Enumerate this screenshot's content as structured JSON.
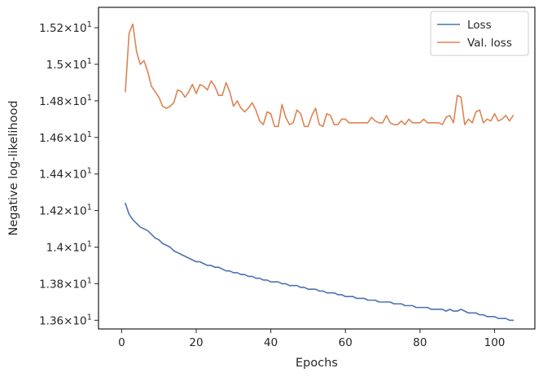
{
  "chart_data": {
    "type": "line",
    "title": "",
    "xlabel": "Epochs",
    "ylabel": "Negative log-likelihood",
    "xlim": [
      -6.2,
      110.8
    ],
    "ylim": [
      13.5525,
      15.3116
    ],
    "x_ticks": [
      {
        "value": 0,
        "label": "0"
      },
      {
        "value": 20,
        "label": "20"
      },
      {
        "value": 40,
        "label": "40"
      },
      {
        "value": 60,
        "label": "60"
      },
      {
        "value": 80,
        "label": "80"
      },
      {
        "value": 100,
        "label": "100"
      }
    ],
    "y_ticks": [
      {
        "value": 13.6,
        "mantissa": "1.36",
        "exponent": "1"
      },
      {
        "value": 13.8,
        "mantissa": "1.38",
        "exponent": "1"
      },
      {
        "value": 14.0,
        "mantissa": "1.4",
        "exponent": "1"
      },
      {
        "value": 14.2,
        "mantissa": "1.42",
        "exponent": "1"
      },
      {
        "value": 14.4,
        "mantissa": "1.44",
        "exponent": "1"
      },
      {
        "value": 14.6,
        "mantissa": "1.46",
        "exponent": "1"
      },
      {
        "value": 14.8,
        "mantissa": "1.48",
        "exponent": "1"
      },
      {
        "value": 15.0,
        "mantissa": "1.5",
        "exponent": "1"
      },
      {
        "value": 15.2,
        "mantissa": "1.52",
        "exponent": "1"
      }
    ],
    "tick_prefix_times": "×10",
    "grid": false,
    "legend_position": "top-right",
    "x": [
      1,
      2,
      3,
      4,
      5,
      6,
      7,
      8,
      9,
      10,
      11,
      12,
      13,
      14,
      15,
      16,
      17,
      18,
      19,
      20,
      21,
      22,
      23,
      24,
      25,
      26,
      27,
      28,
      29,
      30,
      31,
      32,
      33,
      34,
      35,
      36,
      37,
      38,
      39,
      40,
      41,
      42,
      43,
      44,
      45,
      46,
      47,
      48,
      49,
      50,
      51,
      52,
      53,
      54,
      55,
      56,
      57,
      58,
      59,
      60,
      61,
      62,
      63,
      64,
      65,
      66,
      67,
      68,
      69,
      70,
      71,
      72,
      73,
      74,
      75,
      76,
      77,
      78,
      79,
      80,
      81,
      82,
      83,
      84,
      85,
      86,
      87,
      88,
      89,
      90,
      91,
      92,
      93,
      94,
      95,
      96,
      97,
      98,
      99,
      100,
      101,
      102,
      103,
      104,
      105
    ],
    "series": [
      {
        "name": "Loss",
        "color": "#4c72b0",
        "values": [
          14.24,
          14.18,
          14.15,
          14.13,
          14.11,
          14.1,
          14.09,
          14.07,
          14.05,
          14.04,
          14.02,
          14.01,
          14.0,
          13.98,
          13.97,
          13.96,
          13.95,
          13.94,
          13.93,
          13.92,
          13.92,
          13.91,
          13.9,
          13.9,
          13.89,
          13.89,
          13.88,
          13.87,
          13.87,
          13.86,
          13.86,
          13.85,
          13.85,
          13.84,
          13.84,
          13.83,
          13.83,
          13.82,
          13.82,
          13.81,
          13.81,
          13.81,
          13.8,
          13.8,
          13.79,
          13.79,
          13.79,
          13.78,
          13.78,
          13.77,
          13.77,
          13.77,
          13.76,
          13.76,
          13.75,
          13.75,
          13.75,
          13.74,
          13.74,
          13.73,
          13.73,
          13.73,
          13.72,
          13.72,
          13.72,
          13.71,
          13.71,
          13.71,
          13.7,
          13.7,
          13.7,
          13.7,
          13.69,
          13.69,
          13.69,
          13.68,
          13.68,
          13.68,
          13.67,
          13.67,
          13.67,
          13.67,
          13.66,
          13.66,
          13.66,
          13.66,
          13.65,
          13.66,
          13.65,
          13.65,
          13.66,
          13.65,
          13.64,
          13.64,
          13.64,
          13.63,
          13.63,
          13.62,
          13.62,
          13.62,
          13.61,
          13.61,
          13.61,
          13.6,
          13.6
        ]
      },
      {
        "name": "Val. loss",
        "color": "#dd8452",
        "values": [
          14.85,
          15.17,
          15.22,
          15.07,
          15.0,
          15.02,
          14.96,
          14.88,
          14.85,
          14.82,
          14.77,
          14.76,
          14.77,
          14.79,
          14.86,
          14.85,
          14.82,
          14.85,
          14.89,
          14.84,
          14.89,
          14.88,
          14.86,
          14.91,
          14.88,
          14.83,
          14.83,
          14.9,
          14.85,
          14.77,
          14.8,
          14.76,
          14.74,
          14.76,
          14.79,
          14.75,
          14.69,
          14.67,
          14.74,
          14.73,
          14.66,
          14.66,
          14.78,
          14.71,
          14.67,
          14.68,
          14.75,
          14.73,
          14.66,
          14.66,
          14.72,
          14.76,
          14.67,
          14.66,
          14.73,
          14.72,
          14.67,
          14.67,
          14.7,
          14.7,
          14.68,
          14.68,
          14.68,
          14.68,
          14.68,
          14.68,
          14.71,
          14.69,
          14.68,
          14.68,
          14.72,
          14.68,
          14.67,
          14.67,
          14.69,
          14.67,
          14.7,
          14.68,
          14.68,
          14.68,
          14.7,
          14.68,
          14.68,
          14.68,
          14.68,
          14.67,
          14.71,
          14.72,
          14.68,
          14.83,
          14.82,
          14.67,
          14.7,
          14.68,
          14.74,
          14.75,
          14.68,
          14.7,
          14.69,
          14.73,
          14.69,
          14.7,
          14.72,
          14.69,
          14.72
        ]
      }
    ]
  }
}
